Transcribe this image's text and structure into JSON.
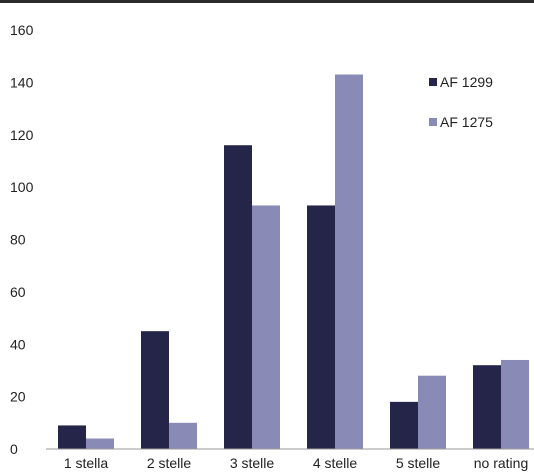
{
  "chart_data": {
    "type": "bar",
    "title": "",
    "xlabel": "",
    "ylabel": "",
    "categories": [
      "1 stella",
      "2 stelle",
      "3 stelle",
      "4 stelle",
      "5 stelle",
      "no rating"
    ],
    "series": [
      {
        "name": "AF 1299",
        "values": [
          9,
          45,
          116,
          93,
          18,
          32
        ],
        "color": "#25254a"
      },
      {
        "name": "AF 1275",
        "values": [
          4,
          10,
          93,
          143,
          28,
          34
        ],
        "color": "#8a8ab6"
      }
    ],
    "ylim": [
      0,
      160
    ],
    "yticks": [
      0,
      20,
      40,
      60,
      80,
      100,
      120,
      140,
      160
    ],
    "grid": false,
    "legend_position": "top-right"
  }
}
